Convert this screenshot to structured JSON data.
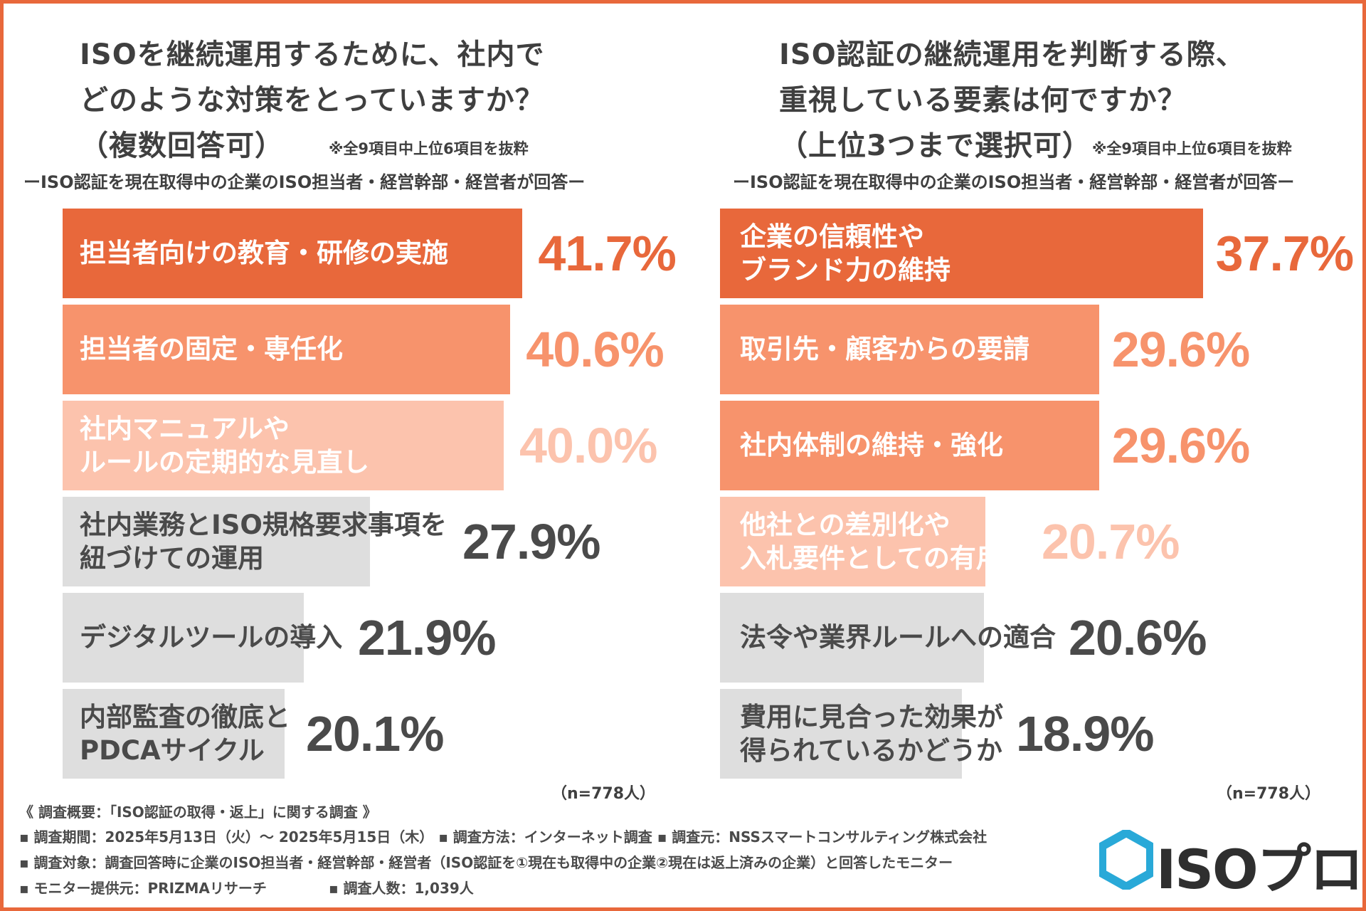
{
  "colors": {
    "dark_orange": "#E8683B",
    "medium_orange": "#F7936C",
    "light_orange": "#FCC3AD",
    "gray_bar": "#DEDEDE",
    "gray_text": "#4a4a4a",
    "white": "#ffffff",
    "logo_blue": "#29A9D8"
  },
  "left": {
    "title": [
      "ISOを継続運用するために、社内で",
      "どのような対策をとっていますか？"
    ],
    "title_paren": "（複数回答可）",
    "note": "※全9項目中上位6項目を抜粋",
    "subtitle": "ーISO認証を現在取得中の企業のISO担当者・経営幹部・経営者が回答ー",
    "n_label": "（n=778人）"
  },
  "right": {
    "title": [
      "ISO認証の継続運用を判断する際、",
      "重視している要素は何ですか？"
    ],
    "title_paren": "（上位3つまで選択可）",
    "note": "※全9項目中上位6項目を抜粋",
    "subtitle": "ーISO認証を現在取得中の企業のISO担当者・経営幹部・経営者が回答ー",
    "n_label": "（n=778人）"
  },
  "chart_data": [
    {
      "type": "bar",
      "orientation": "horizontal",
      "title": "ISOを継続運用するために、社内でどのような対策をとっていますか？（複数回答可）",
      "unit": "%",
      "categories": [
        [
          "担当者向けの教育・研修の実施"
        ],
        [
          "担当者の固定・専任化"
        ],
        [
          "社内マニュアルや",
          "ルールの定期的な見直し"
        ],
        [
          "社内業務とISO規格要求事項を",
          "紐づけての運用"
        ],
        [
          "デジタルツールの導入"
        ],
        [
          "内部監査の徹底と",
          "PDCAサイクル"
        ]
      ],
      "values": [
        41.7,
        40.6,
        40.0,
        27.9,
        21.9,
        20.1
      ],
      "value_labels": [
        "41.7%",
        "40.6%",
        "40.0%",
        "27.9%",
        "21.9%",
        "20.1%"
      ],
      "tiers": [
        "dark",
        "medium",
        "light",
        "gray",
        "gray",
        "gray"
      ]
    },
    {
      "type": "bar",
      "orientation": "horizontal",
      "title": "ISO認証の継続運用を判断する際、重視している要素は何ですか？（上位3つまで選択可）",
      "unit": "%",
      "categories": [
        [
          "企業の信頼性や",
          "ブランド力の維持"
        ],
        [
          "取引先・顧客からの要請"
        ],
        [
          "社内体制の維持・強化"
        ],
        [
          "他社との差別化や",
          "入札要件としての有用性"
        ],
        [
          "法令や業界ルールへの適合"
        ],
        [
          "費用に見合った効果が",
          "得られているかどうか"
        ]
      ],
      "values": [
        37.7,
        29.6,
        29.6,
        20.7,
        20.6,
        18.9
      ],
      "value_labels": [
        "37.7%",
        "29.6%",
        "29.6%",
        "20.7%",
        "20.6%",
        "18.9%"
      ],
      "tiers": [
        "dark",
        "medium",
        "medium",
        "light",
        "gray",
        "gray"
      ]
    }
  ],
  "footer": {
    "heading": "《 調査概要：「ISO認証の取得・返上」に関する調査 》",
    "line1": "▪ 調査期間：2025年5月13日（火）～ 2025年5月15日（木）  ▪ 調査方法：インターネット調査 ▪ 調査元：NSSスマートコンサルティング株式会社",
    "line2": "▪ 調査対象：調査回答時に企業のISO担当者・経営幹部・経営者（ISO認証を①現在も取得中の企業②現在は返上済みの企業）と回答したモニター",
    "line3a": "▪ モニター提供元：PRIZMAリサーチ",
    "line3b": "▪ 調査人数：1,039人"
  },
  "logo": {
    "text": "ISOプロ",
    "icon": "hexagon-logo-icon"
  }
}
